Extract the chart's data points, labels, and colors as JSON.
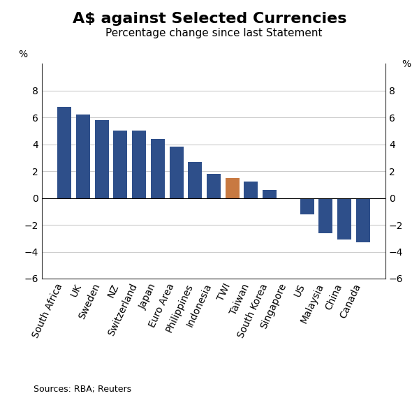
{
  "title": "A$ against Selected Currencies",
  "subtitle": "Percentage change since last Statement",
  "ylabel_left": "%",
  "ylabel_right": "%",
  "source": "Sources: RBA; Reuters",
  "categories": [
    "South Africa",
    "UK",
    "Sweden",
    "NZ",
    "Switzerland",
    "Japan",
    "Euro Area",
    "Philippines",
    "Indonesia",
    "TWI",
    "Taiwan",
    "South Korea",
    "Singapore",
    "US",
    "Malaysia",
    "China",
    "Canada"
  ],
  "values": [
    6.8,
    6.2,
    5.8,
    5.0,
    5.0,
    4.4,
    3.8,
    2.7,
    1.8,
    1.5,
    1.2,
    0.6,
    -0.1,
    -1.2,
    -2.6,
    -3.1,
    -3.3
  ],
  "bar_colors": [
    "#2e4f8a",
    "#2e4f8a",
    "#2e4f8a",
    "#2e4f8a",
    "#2e4f8a",
    "#2e4f8a",
    "#2e4f8a",
    "#2e4f8a",
    "#2e4f8a",
    "#c87941",
    "#2e4f8a",
    "#2e4f8a",
    "#2e4f8a",
    "#2e4f8a",
    "#2e4f8a",
    "#2e4f8a",
    "#2e4f8a"
  ],
  "ylim": [
    -6,
    10
  ],
  "yticks": [
    -6,
    -4,
    -2,
    0,
    2,
    4,
    6,
    8
  ],
  "title_fontsize": 16,
  "subtitle_fontsize": 11,
  "tick_fontsize": 10,
  "label_rotation": 65,
  "source_fontsize": 9,
  "background_color": "#ffffff",
  "grid_color": "#cccccc"
}
